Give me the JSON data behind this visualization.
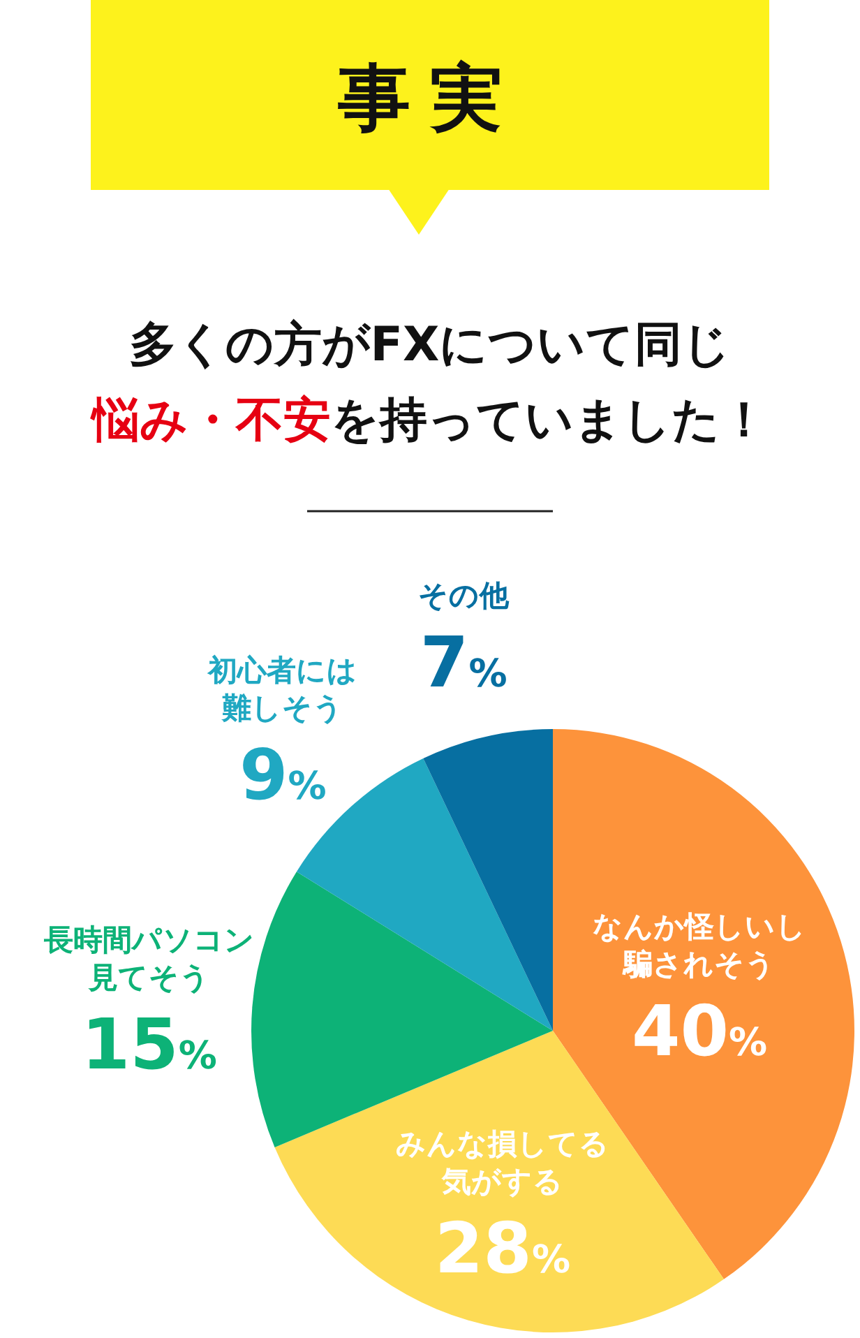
{
  "chart_data": {
    "type": "pie",
    "title": "事実",
    "subtitle": "多くの方がFXについて同じ悩み・不安を持っていました！",
    "categories": [
      "なんか怪しいし騙されそう",
      "みんな損してる気がする",
      "長時間パソコン見てそう",
      "初心者には難しそう",
      "その他"
    ],
    "values": [
      40,
      28,
      15,
      9,
      7
    ],
    "value_labels": [
      "40%",
      "28%",
      "15%",
      "9%",
      "7%"
    ],
    "colors": [
      "#fd933b",
      "#fddb55",
      "#0db277",
      "#20a8c2",
      "#076fa1"
    ]
  }
}
